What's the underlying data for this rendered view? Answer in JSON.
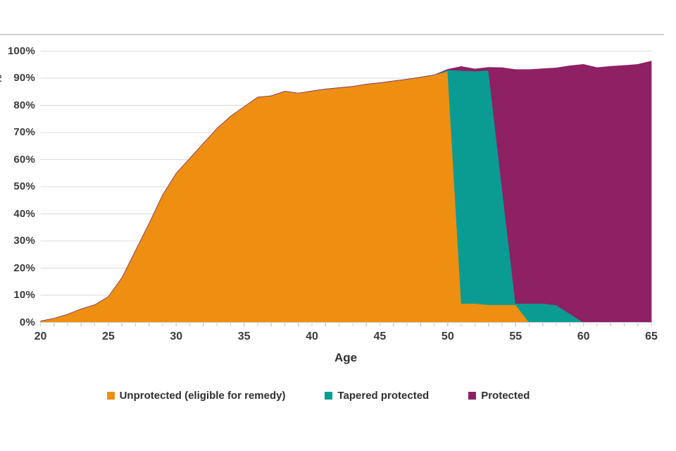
{
  "chart_data": {
    "type": "area",
    "stacked": true,
    "title": "",
    "xlabel": "Age",
    "ylabel_fragment": "%",
    "ylim": [
      0,
      100
    ],
    "xlim": [
      20,
      65
    ],
    "grid": "horizontal",
    "legend_position": "bottom",
    "x": [
      20,
      21,
      22,
      23,
      24,
      25,
      26,
      27,
      28,
      29,
      30,
      31,
      32,
      33,
      34,
      35,
      36,
      37,
      38,
      39,
      40,
      41,
      42,
      43,
      44,
      45,
      46,
      47,
      48,
      49,
      50,
      51,
      52,
      53,
      54,
      55,
      56,
      57,
      58,
      59,
      60,
      61,
      62,
      63,
      64,
      65
    ],
    "xticks": [
      20,
      25,
      30,
      35,
      40,
      45,
      50,
      55,
      60,
      65
    ],
    "ytick_labels": [
      "0%",
      "10%",
      "20%",
      "30%",
      "40%",
      "50%",
      "60%",
      "70%",
      "80%",
      "90%",
      "100%"
    ],
    "series": [
      {
        "name": "Unprotected (eligible for remedy)",
        "color": "#EE8F11",
        "values": [
          0.5,
          1.5,
          3,
          5,
          6.5,
          9.5,
          16.5,
          26.5,
          36.5,
          47,
          55,
          60.5,
          66,
          71.5,
          76,
          79.5,
          83,
          83.5,
          85.2,
          84.5,
          85.3,
          86,
          86.5,
          87,
          87.8,
          88.3,
          89,
          89.6,
          90.4,
          91.2,
          92.6,
          7,
          7,
          6.5,
          6.5,
          6.5,
          0,
          0,
          0,
          0,
          0,
          0,
          0,
          0,
          0,
          0
        ]
      },
      {
        "name": "Tapered protected",
        "color": "#0A9C92",
        "values": [
          0,
          0,
          0,
          0,
          0,
          0,
          0,
          0,
          0,
          0,
          0,
          0,
          0,
          0,
          0,
          0,
          0,
          0,
          0,
          0,
          0,
          0,
          0,
          0,
          0,
          0,
          0,
          0,
          0,
          0,
          0.5,
          85.8,
          85.6,
          86.4,
          43,
          0.5,
          7,
          7,
          6.4,
          3.2,
          0,
          0,
          0,
          0,
          0,
          0
        ]
      },
      {
        "name": "Protected",
        "color": "#8E2064",
        "values": [
          0,
          0,
          0,
          0,
          0,
          0,
          0,
          0,
          0,
          0,
          0,
          0,
          0,
          0,
          0,
          0,
          0,
          0,
          0,
          0,
          0,
          0,
          0,
          0,
          0,
          0,
          0,
          0,
          0,
          0,
          0.2,
          1.5,
          0.8,
          1.1,
          44.4,
          86.2,
          86.2,
          86.5,
          87.4,
          91.4,
          95.1,
          93.9,
          94.4,
          94.7,
          95.1,
          96.3
        ]
      }
    ],
    "colors": {
      "gridline": "#d9d9d9",
      "axis_line": "#c8c8c8",
      "tick": "#c8c8c8",
      "axis_text": "#3a3a3a",
      "top_border": "#d6d3d3"
    }
  }
}
